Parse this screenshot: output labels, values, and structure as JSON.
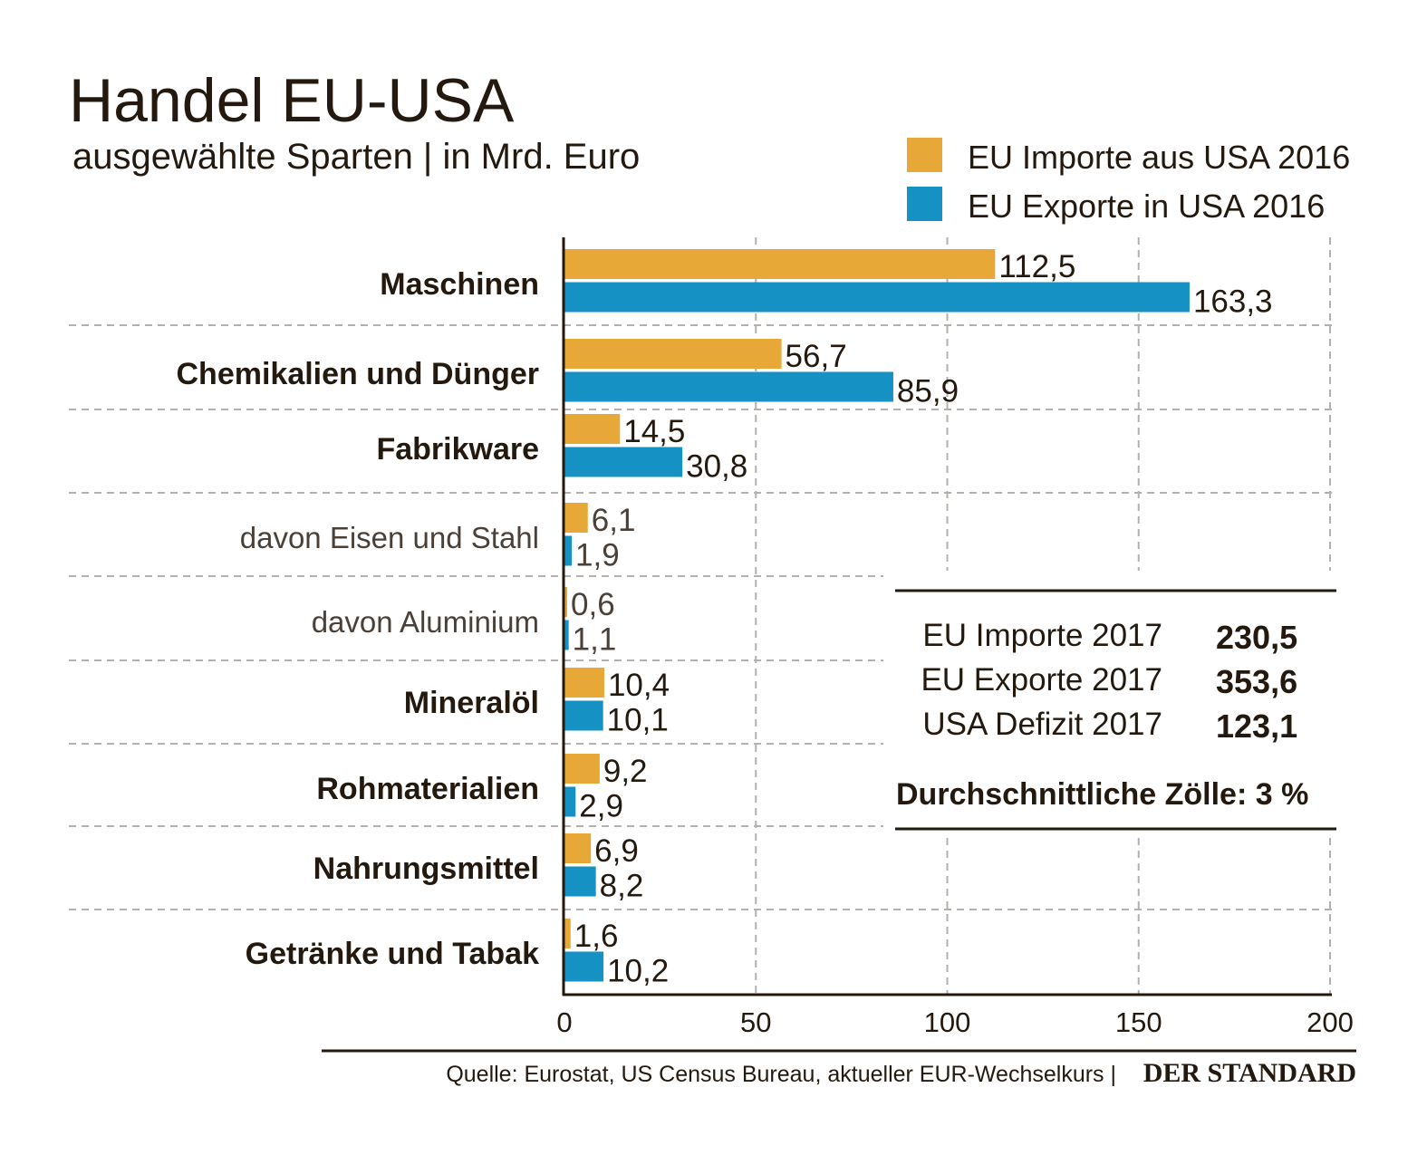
{
  "chart_data": {
    "type": "bar",
    "orientation": "horizontal",
    "title": "Handel EU-USA",
    "subtitle": "ausgewählte Sparten | in Mrd. Euro",
    "categories": [
      "Maschinen",
      "Chemikalien und Dünger",
      "Fabrikware",
      "davon Eisen und Stahl",
      "davon Aluminium",
      "Mineralöl",
      "Rohmaterialien",
      "Nahrungsmittel",
      "Getränke und Tabak"
    ],
    "subcategories": [
      "davon Eisen und Stahl",
      "davon Aluminium"
    ],
    "series": [
      {
        "name": "EU Importe aus USA 2016",
        "color": "#E8A838",
        "values": [
          112.5,
          56.7,
          14.5,
          6.1,
          0.6,
          10.4,
          9.2,
          6.9,
          1.6
        ],
        "labels": [
          "112,5",
          "56,7",
          "14,5",
          "6,1",
          "0,6",
          "10,4",
          "9,2",
          "6,9",
          "1,6"
        ]
      },
      {
        "name": "EU Exporte in USA 2016",
        "color": "#1591C4",
        "values": [
          163.3,
          85.9,
          30.8,
          1.9,
          1.1,
          10.1,
          2.9,
          8.2,
          10.2
        ],
        "labels": [
          "163,3",
          "85,9",
          "30,8",
          "1,9",
          "1,1",
          "10,1",
          "2,9",
          "8,2",
          "10,2"
        ]
      }
    ],
    "xlim": [
      0,
      200
    ],
    "xticks": [
      "0",
      "50",
      "100",
      "150",
      "200"
    ],
    "grid": true,
    "legend": "top-right"
  },
  "summary": {
    "rows": [
      {
        "label": "EU Importe 2017",
        "value": "230,5"
      },
      {
        "label": "EU Exporte 2017",
        "value": "353,6"
      },
      {
        "label": "USA Defizit 2017",
        "value": "123,1"
      }
    ],
    "tariff": "Durchschnittliche Zölle: 3 %"
  },
  "footer": {
    "source": "Quelle: Eurostat, US Census Bureau, aktueller EUR-Wechselkurs |",
    "logo": "DER STANDARD"
  }
}
